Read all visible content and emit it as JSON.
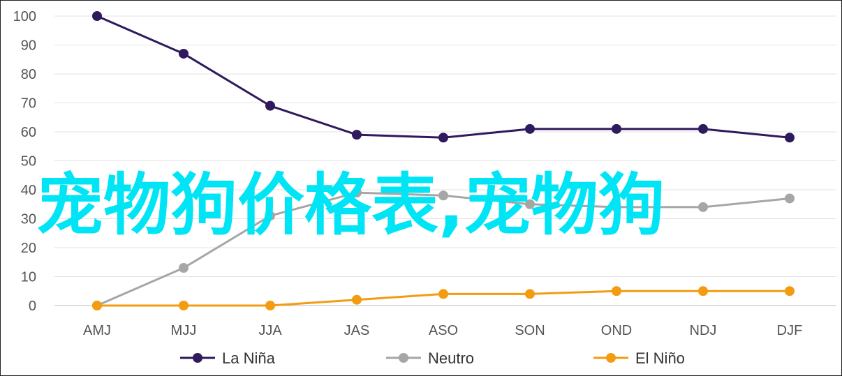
{
  "chart_data": {
    "type": "line",
    "categories": [
      "AMJ",
      "MJJ",
      "JJA",
      "JAS",
      "ASO",
      "SON",
      "OND",
      "NDJ",
      "DJF"
    ],
    "y_ticks": [
      0,
      10,
      20,
      30,
      40,
      50,
      60,
      70,
      80,
      90,
      100
    ],
    "ylim": [
      0,
      100
    ],
    "grid": true,
    "legend_position": "bottom",
    "series": [
      {
        "name": "La Niña",
        "color": "#2e1a5c",
        "values": [
          100,
          87,
          69,
          59,
          58,
          61,
          61,
          61,
          58
        ]
      },
      {
        "name": "Neutro",
        "color": "#a6a6a6",
        "values": [
          0,
          13,
          31,
          39,
          38,
          35,
          34,
          34,
          37
        ]
      },
      {
        "name": "El Niño",
        "color": "#f39c12",
        "values": [
          0,
          0,
          0,
          2,
          4,
          4,
          5,
          5,
          5
        ]
      }
    ]
  },
  "overlay_text": "宠物狗价格表,宠物狗"
}
